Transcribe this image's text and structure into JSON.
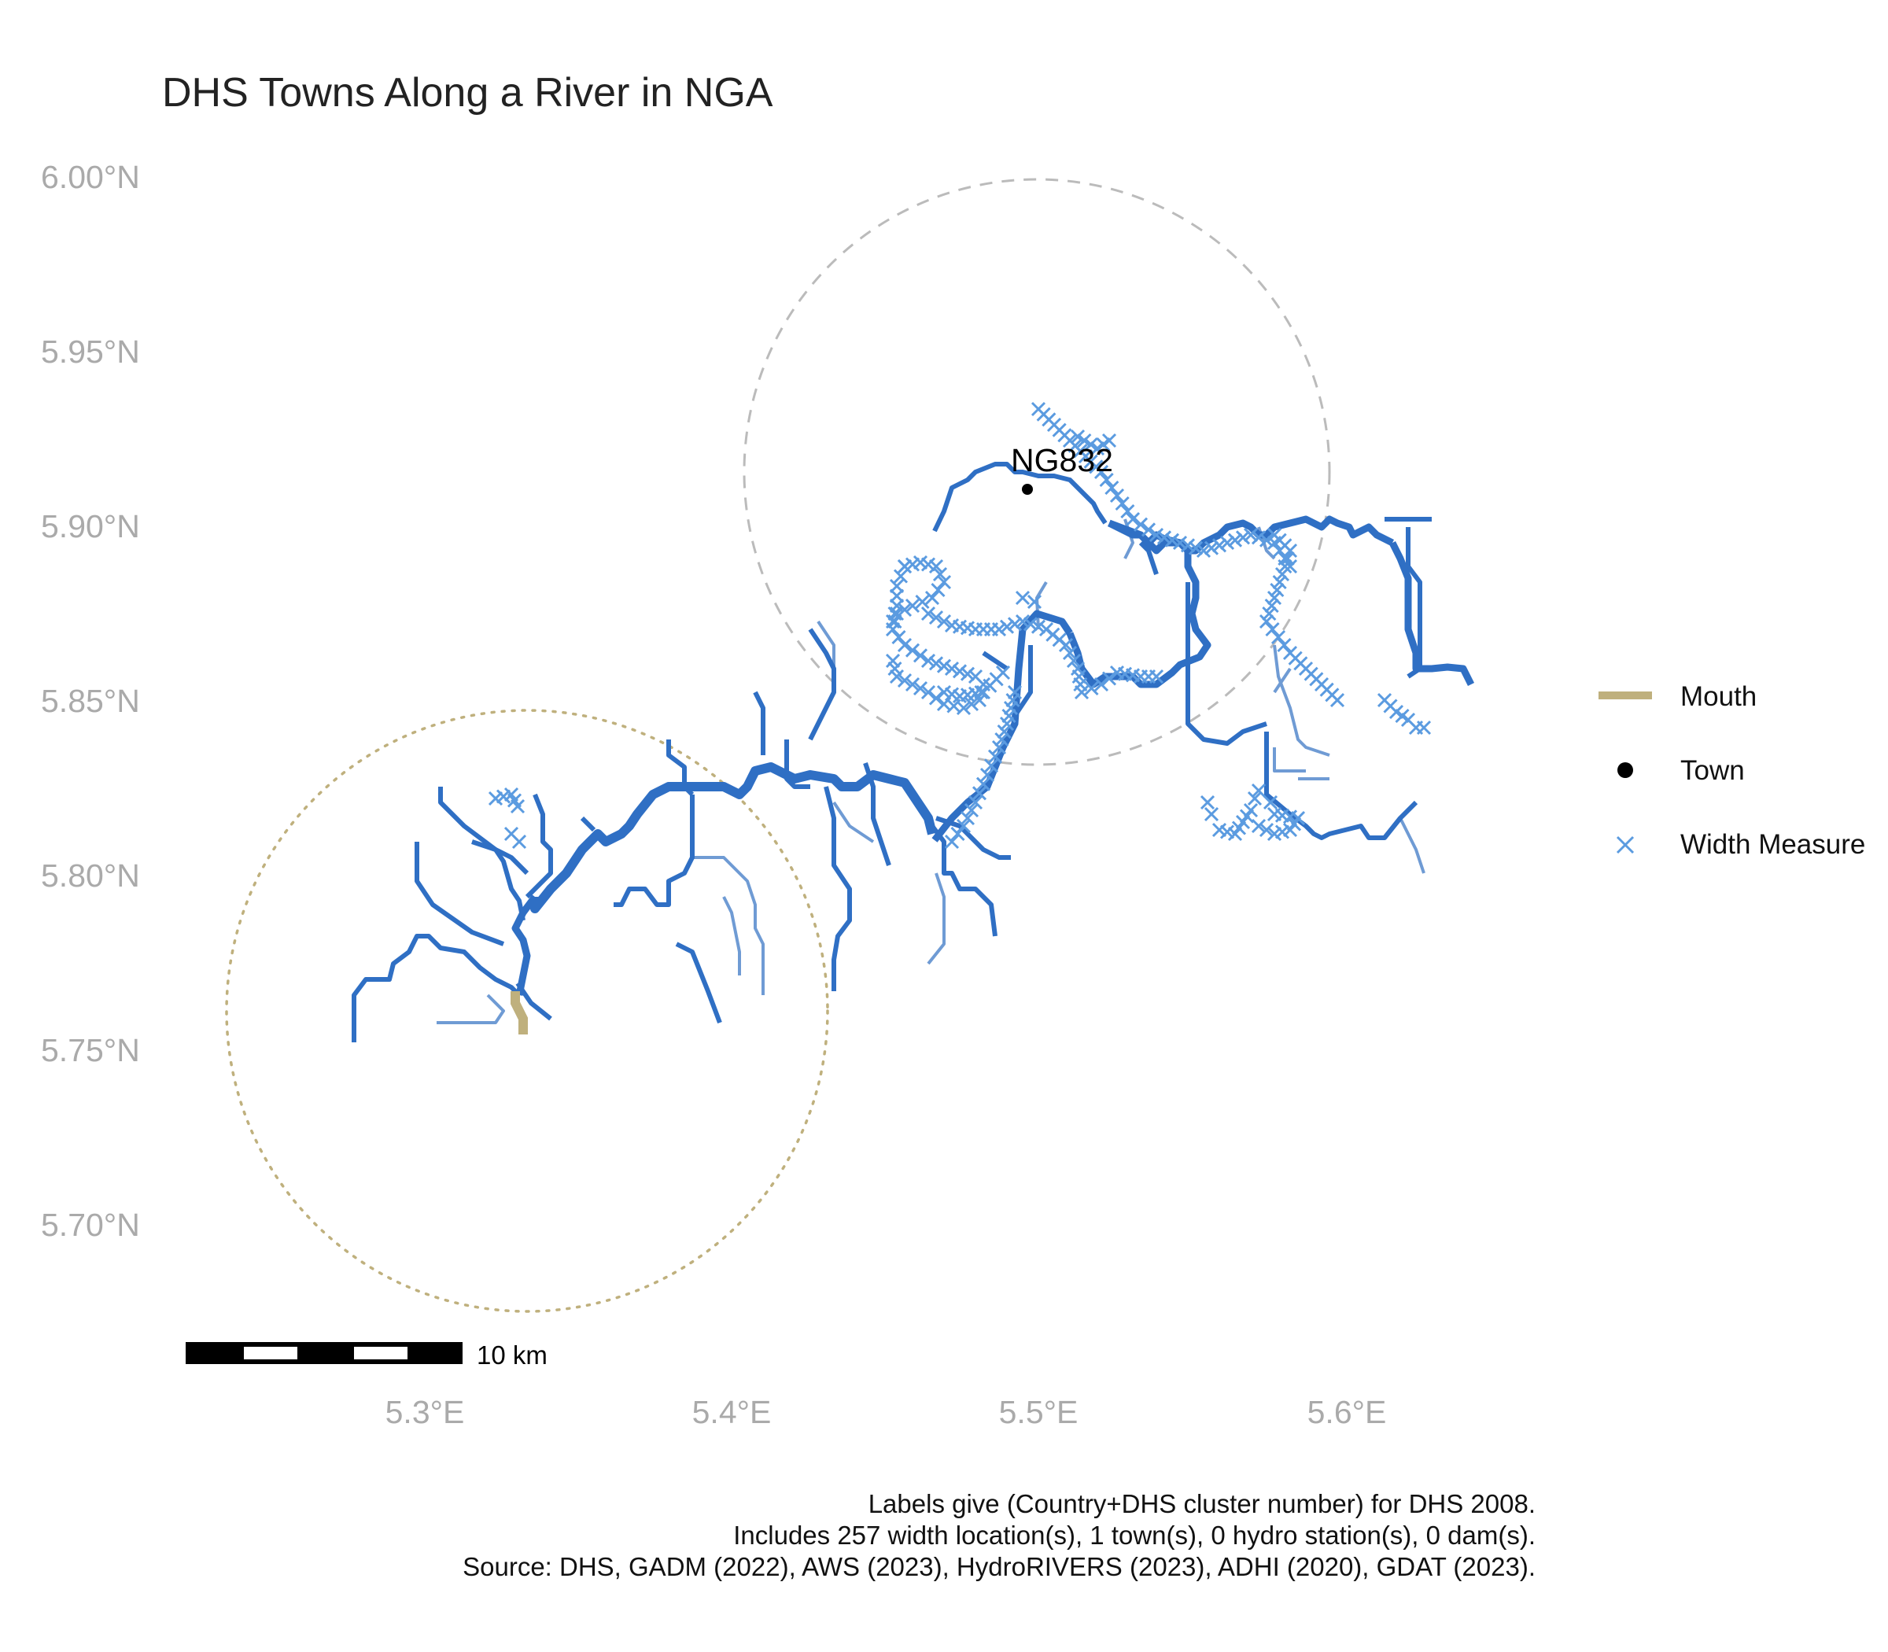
{
  "title": "DHS Towns Along a River in NGA",
  "axes": {
    "y_ticks": [
      "6.00°N",
      "5.95°N",
      "5.90°N",
      "5.85°N",
      "5.80°N",
      "5.75°N",
      "5.70°N"
    ],
    "x_ticks": [
      "5.3°E",
      "5.4°E",
      "5.5°E",
      "5.6°E"
    ]
  },
  "town": {
    "label": "NG832"
  },
  "scale_bar": {
    "label": "10 km"
  },
  "legend": {
    "items": [
      {
        "label": "Mouth",
        "color": "#bfb07d",
        "symbol": "line"
      },
      {
        "label": "Town",
        "color": "#000000",
        "symbol": "dot"
      },
      {
        "label": "Width Measure",
        "color": "#5b9be0",
        "symbol": "x"
      }
    ]
  },
  "caption": {
    "lines": [
      "Labels give (Country+DHS cluster number) for DHS 2008.",
      "Includes 257 width location(s), 1 town(s), 0 hydro station(s), 0 dam(s).",
      "Source: DHS, GADM (2022), AWS (2023), HydroRIVERS (2023), ADHI (2020), GDAT (2023)."
    ]
  },
  "colors": {
    "river_main": "#2f6fc4",
    "river_minor": "#6f9bd4",
    "width_marker": "#5b9be0",
    "mouth": "#bfb07d",
    "town_buffer": "#bbbbbb",
    "mouth_buffer": "#bfb07d"
  }
}
